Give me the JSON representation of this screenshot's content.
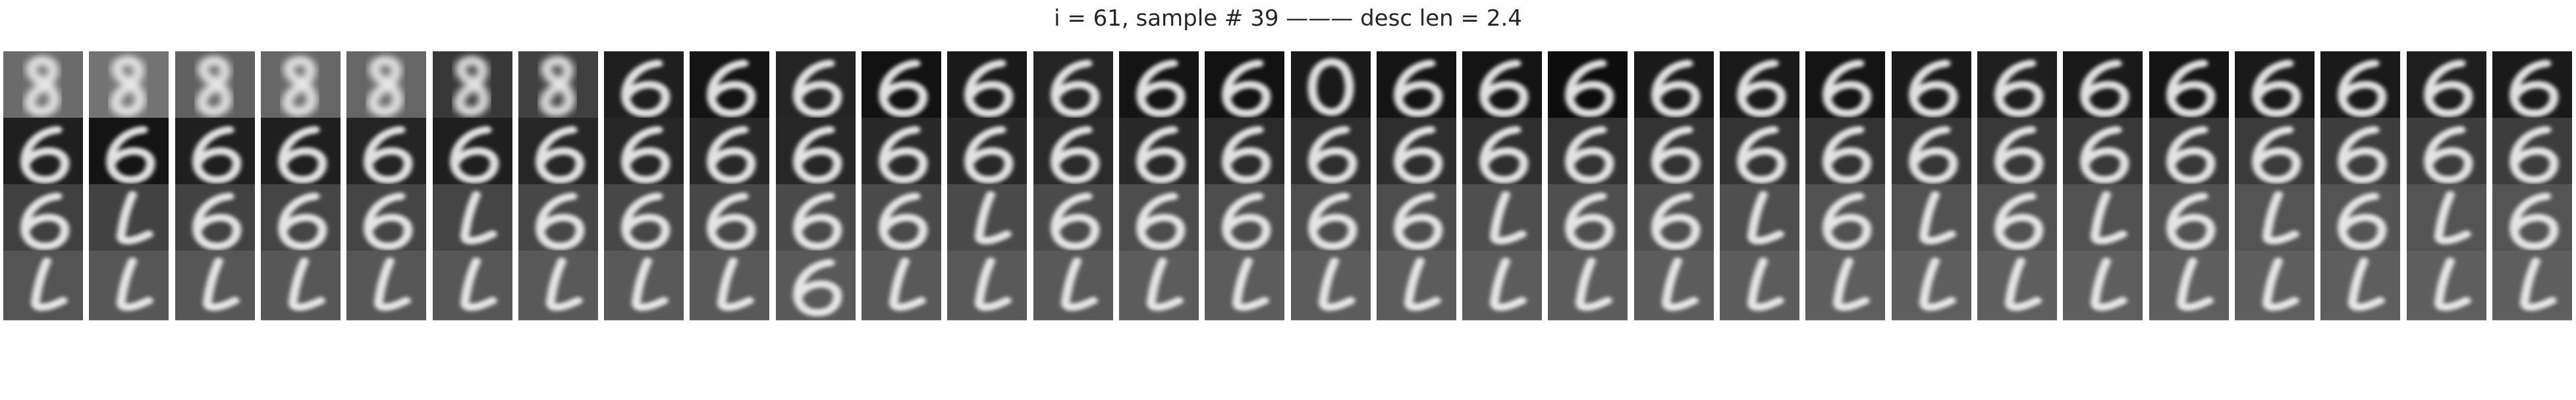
{
  "figure": {
    "title": "i = 61, sample # 39 ——— desc len = 2.4"
  },
  "grid": {
    "rows": 4,
    "cols": 30,
    "colors": {
      "background": "#ffffff",
      "stroke": "#f2f2f2"
    },
    "rows_data": [
      {
        "glyph": [
          "8",
          "8",
          "8",
          "8",
          "8",
          "8",
          "8",
          "6",
          "6",
          "6",
          "6",
          "6",
          "6",
          "6",
          "6",
          "0",
          "6",
          "6",
          "6",
          "6",
          "6",
          "6",
          "6",
          "6",
          "6",
          "6",
          "6",
          "6",
          "6",
          "6"
        ],
        "tone": [
          0.42,
          0.45,
          0.38,
          0.4,
          0.4,
          0.22,
          0.25,
          0.12,
          0.08,
          0.14,
          0.07,
          0.1,
          0.14,
          0.08,
          0.07,
          0.1,
          0.08,
          0.08,
          0.05,
          0.1,
          0.1,
          0.08,
          0.1,
          0.12,
          0.1,
          0.08,
          0.1,
          0.1,
          0.12,
          0.1
        ]
      },
      {
        "glyph": [
          "6",
          "6",
          "6",
          "6",
          "6",
          "6",
          "6",
          "6",
          "6",
          "6",
          "6",
          "6",
          "6",
          "6",
          "6",
          "6",
          "6",
          "6",
          "6",
          "6",
          "6",
          "6",
          "6",
          "6",
          "6",
          "6",
          "6",
          "6",
          "6",
          "6"
        ],
        "tone": [
          0.12,
          0.08,
          0.12,
          0.12,
          0.14,
          0.12,
          0.15,
          0.15,
          0.16,
          0.15,
          0.16,
          0.16,
          0.17,
          0.16,
          0.17,
          0.18,
          0.18,
          0.18,
          0.2,
          0.2,
          0.2,
          0.2,
          0.21,
          0.22,
          0.22,
          0.22,
          0.23,
          0.24,
          0.24,
          0.24
        ]
      },
      {
        "glyph": [
          "6",
          "L",
          "6",
          "6",
          "6",
          "L",
          "6",
          "6",
          "6",
          "6",
          "6",
          "L",
          "6",
          "6",
          "6",
          "6",
          "6",
          "L",
          "6",
          "6",
          "L",
          "6",
          "L",
          "6",
          "L",
          "6",
          "L",
          "6",
          "L",
          "6"
        ],
        "tone": [
          0.25,
          0.26,
          0.26,
          0.27,
          0.27,
          0.27,
          0.28,
          0.28,
          0.28,
          0.29,
          0.29,
          0.29,
          0.29,
          0.3,
          0.3,
          0.3,
          0.3,
          0.31,
          0.31,
          0.31,
          0.31,
          0.32,
          0.32,
          0.32,
          0.32,
          0.32,
          0.33,
          0.33,
          0.33,
          0.33
        ]
      },
      {
        "glyph": [
          "L",
          "L",
          "L",
          "L",
          "L",
          "L",
          "L",
          "L",
          "L",
          "6",
          "L",
          "L",
          "L",
          "L",
          "L",
          "L",
          "L",
          "L",
          "L",
          "L",
          "L",
          "L",
          "L",
          "L",
          "L",
          "L",
          "L",
          "L",
          "L",
          "L"
        ],
        "tone": [
          0.33,
          0.34,
          0.34,
          0.34,
          0.34,
          0.34,
          0.35,
          0.35,
          0.35,
          0.35,
          0.35,
          0.35,
          0.35,
          0.36,
          0.36,
          0.36,
          0.36,
          0.36,
          0.36,
          0.36,
          0.36,
          0.37,
          0.37,
          0.37,
          0.37,
          0.37,
          0.37,
          0.37,
          0.37,
          0.37
        ]
      }
    ]
  }
}
